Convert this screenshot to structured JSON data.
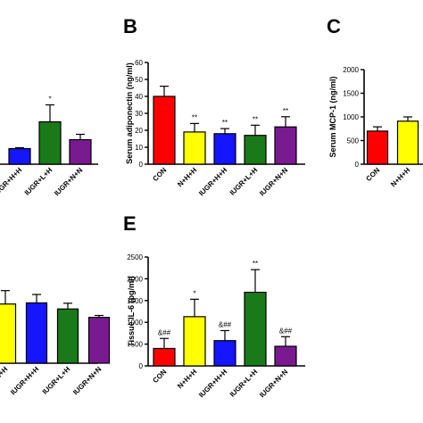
{
  "chart_data": [
    {
      "panel": "",
      "type": "bar",
      "title": "",
      "ylabel": "",
      "categories": [
        "IUGR+H+H",
        "IUGR+L+H",
        "IUGR+N+N"
      ],
      "values": [
        0.35,
        0.95,
        0.55
      ],
      "errors": [
        0.02,
        0.38,
        0.12
      ],
      "colors": [
        "#1515ff",
        "#1a7a1a",
        "#7a1a90"
      ],
      "annotations": [
        "",
        "*",
        ""
      ],
      "ylim": [
        0,
        2
      ],
      "yticks": []
    },
    {
      "panel": "B",
      "type": "bar",
      "title": "",
      "ylabel": "Serum adiponectin (ng/ml)",
      "categories": [
        "CON",
        "N+H+H",
        "IUGR+H+H",
        "IUGR+L+H",
        "IUGR+N+N"
      ],
      "values": [
        40,
        19,
        18,
        17,
        22
      ],
      "errors": [
        6,
        5,
        3,
        6,
        6
      ],
      "colors": [
        "#ff0000",
        "#ffff00",
        "#1515ff",
        "#1a7a1a",
        "#7a1a90"
      ],
      "annotations": [
        "",
        "**",
        "**",
        "**",
        "**"
      ],
      "ylim": [
        0,
        60
      ],
      "yticks": [
        0,
        10,
        20,
        30,
        40,
        50,
        60
      ]
    },
    {
      "panel": "C",
      "type": "bar",
      "title": "",
      "ylabel": "Serum MCP-1 (ng/ml)",
      "categories": [
        "CON",
        "N+H+H"
      ],
      "values": [
        700,
        910
      ],
      "errors": [
        90,
        90
      ],
      "colors": [
        "#ff0000",
        "#ffff00"
      ],
      "annotations": [
        "",
        ""
      ],
      "ylim": [
        0,
        2000
      ],
      "yticks": [
        0,
        500,
        1000,
        1500,
        2000
      ]
    },
    {
      "panel": "",
      "type": "bar",
      "title": "",
      "ylabel": "",
      "categories": [
        "N+H+H",
        "IUGR+H+H",
        "IUGR+L+H",
        "IUGR+N+N"
      ],
      "values": [
        1.55,
        1.58,
        1.42,
        1.2
      ],
      "errors": [
        0.35,
        0.22,
        0.15,
        0.05
      ],
      "colors": [
        "#ffff00",
        "#1515ff",
        "#1a7a1a",
        "#7a1a90"
      ],
      "annotations": [
        "",
        "",
        "",
        ""
      ],
      "ylim": [
        0,
        2.5
      ],
      "yticks": []
    },
    {
      "panel": "E",
      "type": "bar",
      "title": "",
      "ylabel": "Tissue IL-6 (pg/ml)",
      "categories": [
        "CON",
        "N+H+H",
        "IUGR+H+H",
        "IUGR+L+H",
        "IUGR+N+N"
      ],
      "values": [
        400,
        1130,
        580,
        1690,
        450
      ],
      "errors": [
        230,
        400,
        230,
        520,
        220
      ],
      "colors": [
        "#ff0000",
        "#ffff00",
        "#1515ff",
        "#1a7a1a",
        "#7a1a90"
      ],
      "annotations": [
        "&##",
        "*",
        "&##",
        "**",
        "&##"
      ],
      "ylim": [
        0,
        2500
      ],
      "yticks": [
        0,
        500,
        1000,
        1500,
        2000,
        2500
      ]
    }
  ]
}
